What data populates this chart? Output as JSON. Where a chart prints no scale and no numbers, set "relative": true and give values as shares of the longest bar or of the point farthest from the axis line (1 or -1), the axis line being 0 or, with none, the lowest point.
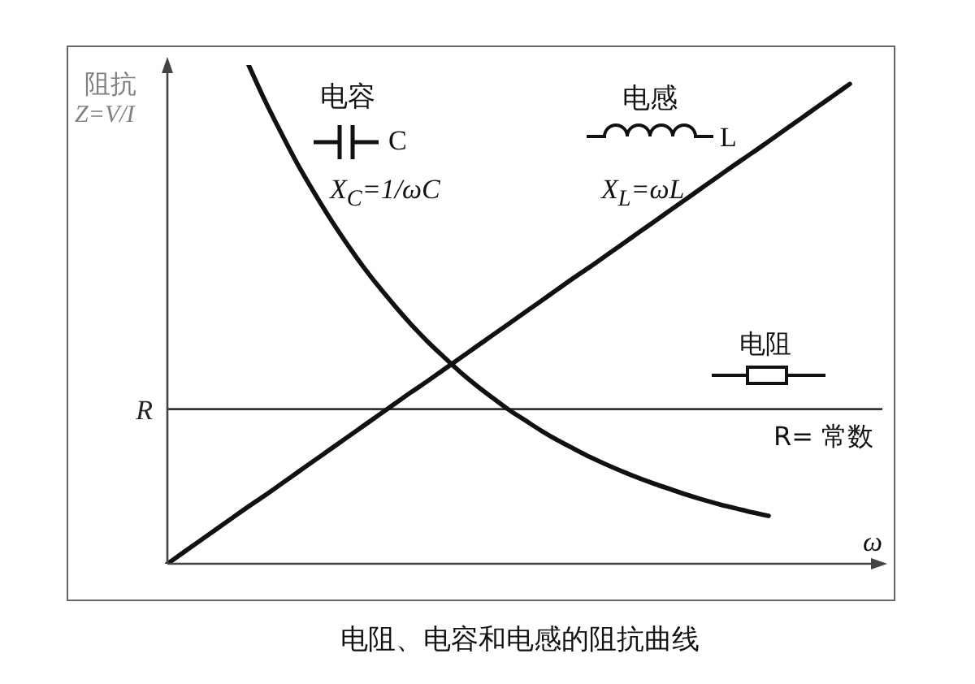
{
  "chart_data": {
    "type": "line",
    "title": "电阻、电容和电感的阻抗曲线",
    "xlabel": "ω",
    "ylabel": "阻抗\nZ=V/I",
    "relative": true,
    "categories": [
      null,
      null,
      null,
      null,
      null,
      null,
      null,
      null,
      null,
      null,
      null,
      null,
      null,
      null,
      null,
      null,
      null,
      null,
      null,
      null,
      null,
      null,
      null,
      null,
      null,
      null,
      null,
      null,
      null,
      null,
      null,
      null,
      null,
      null,
      null,
      null,
      null,
      null,
      null,
      null,
      null,
      null,
      null,
      null,
      null
    ],
    "series": [
      {
        "name": "电容",
        "color": "#111111",
        "values": [
          null,
          null,
          null,
          null,
          null,
          1,
          0.929,
          0.864,
          0.802,
          0.746,
          0.693,
          0.644,
          0.598,
          0.556,
          0.517,
          0.48,
          0.446,
          0.415,
          0.385,
          0.358,
          0.333,
          0.309,
          0.288,
          0.267,
          0.248,
          0.231,
          0.214,
          0.199,
          0.185,
          0.172,
          0.16,
          0.149,
          0.138,
          0.128,
          0.119,
          0.111,
          0.103,
          0.096,
          null,
          null,
          null,
          null,
          null,
          null,
          null
        ]
      },
      {
        "name": "电感",
        "color": "#111111",
        "values": [
          0,
          0.023,
          0.046,
          0.069,
          0.092,
          0.115,
          0.137,
          0.16,
          0.183,
          0.206,
          0.229,
          0.252,
          0.275,
          0.298,
          0.321,
          0.344,
          0.366,
          0.389,
          0.412,
          0.435,
          0.458,
          0.481,
          0.504,
          0.527,
          0.55,
          0.573,
          0.595,
          0.618,
          0.641,
          0.664,
          0.687,
          0.71,
          0.733,
          0.756,
          0.779,
          0.802,
          0.824,
          0.847,
          0.87,
          0.893,
          0.916,
          0.939,
          0.962,
          null,
          null
        ]
      }
    ],
    "ref_lines": [
      {
        "axis": "y",
        "value": 0.31,
        "label": "R",
        "color": "#333333"
      }
    ],
    "annotations": [
      "C",
      "X$_{C}$=1/ωC",
      "L",
      "X$_{L}$=ωL",
      "电阻",
      "R= 常数"
    ],
    "marker": "none",
    "line_style": "solid"
  }
}
